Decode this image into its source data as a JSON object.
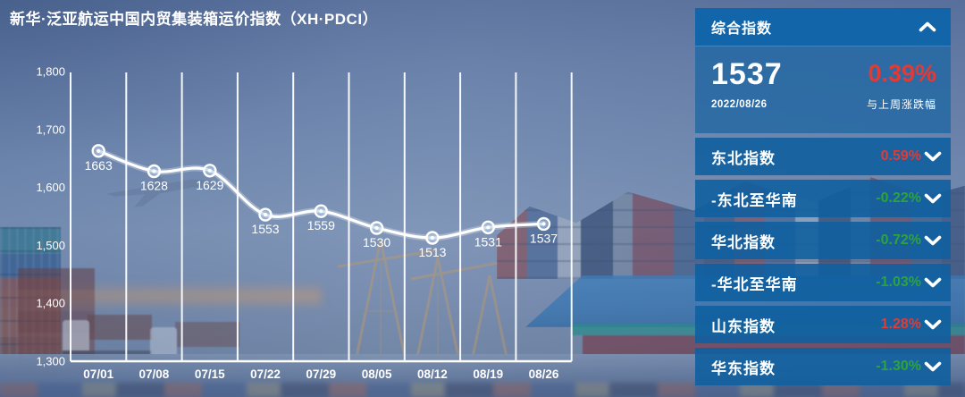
{
  "title": "新华·泛亚航运中国内贸集装箱运价指数（XH·PDCI）",
  "chart_data": {
    "type": "line",
    "title": "XH·PDCI weekly composite index",
    "categories": [
      "07/01",
      "07/08",
      "07/15",
      "07/22",
      "07/29",
      "08/05",
      "08/12",
      "08/19",
      "08/26"
    ],
    "values": [
      1663,
      1628,
      1629,
      1553,
      1559,
      1530,
      1513,
      1531,
      1537
    ],
    "ylim": [
      1300,
      1800
    ],
    "yticks": [
      1300,
      1400,
      1500,
      1600,
      1700,
      1800
    ],
    "grid": "vertical-white-band-lines",
    "legend": "none",
    "line_color": "#ffffff",
    "marker": "white-ring-dot",
    "value_labels": "below-points"
  },
  "panel": {
    "header": {
      "label": "综合指数",
      "chevron": "up"
    },
    "summary": {
      "value": "1537",
      "date": "2022/08/26",
      "change": "0.39%",
      "change_direction": "up",
      "change_caption": "与上周涨跌幅"
    },
    "rows": [
      {
        "label": "东北指数",
        "change": "0.59%",
        "direction": "up"
      },
      {
        "label": "-东北至华南",
        "change": "-0.22%",
        "direction": "down"
      },
      {
        "label": "华北指数",
        "change": "-0.72%",
        "direction": "down"
      },
      {
        "label": "-华北至华南",
        "change": "-1.03%",
        "direction": "down"
      },
      {
        "label": "山东指数",
        "change": "1.28%",
        "direction": "up"
      },
      {
        "label": "华东指数",
        "change": "-1.30%",
        "direction": "down"
      }
    ]
  },
  "colors": {
    "up_red": "#e23b35",
    "down_green": "#2ca43a",
    "panel_blue": "#11629f",
    "line_white": "#ffffff"
  }
}
